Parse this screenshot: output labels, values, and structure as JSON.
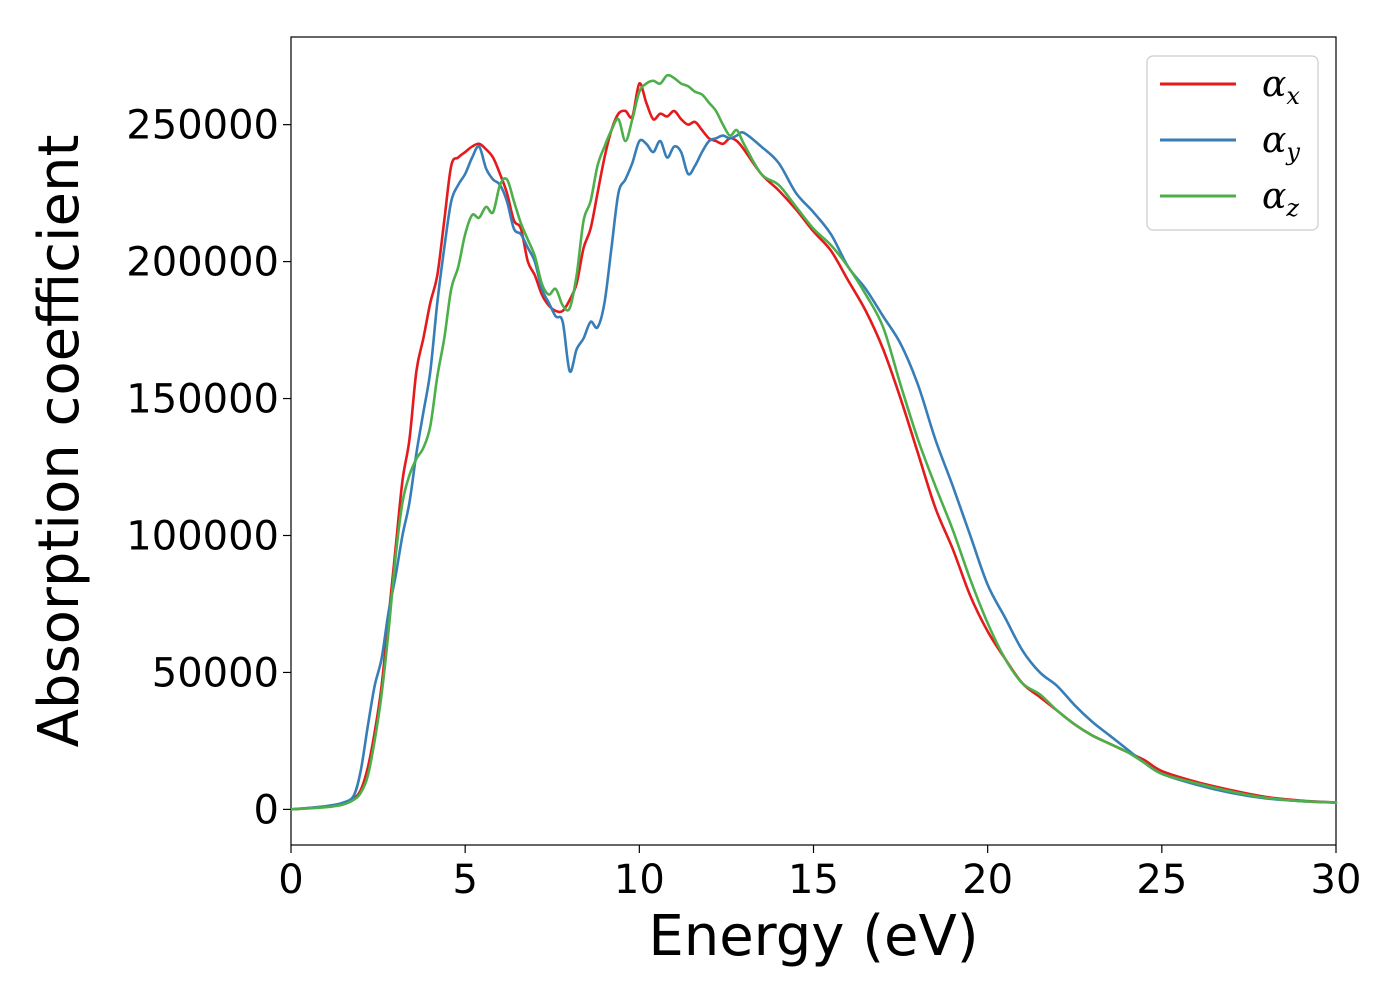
{
  "chart_data": {
    "type": "line",
    "title": "",
    "xlabel": "Energy (eV)",
    "ylabel": "Absorption coefficient",
    "xlim": [
      0,
      30
    ],
    "ylim": [
      -13000,
      282000
    ],
    "xticks": [
      0,
      5,
      10,
      15,
      20,
      25,
      30
    ],
    "yticks": [
      0,
      50000,
      100000,
      150000,
      200000,
      250000
    ],
    "grid": false,
    "legend_position": "top-right",
    "series": [
      {
        "name": "αx",
        "legend_symbol": "α",
        "legend_subscript": "x",
        "color": "#e41a1c",
        "x": [
          0,
          1,
          1.5,
          1.8,
          2,
          2.2,
          2.4,
          2.6,
          2.8,
          3,
          3.2,
          3.4,
          3.6,
          3.8,
          4,
          4.2,
          4.4,
          4.6,
          4.8,
          5,
          5.2,
          5.4,
          5.6,
          5.8,
          6,
          6.2,
          6.4,
          6.6,
          6.8,
          7,
          7.2,
          7.4,
          7.6,
          7.8,
          8,
          8.2,
          8.4,
          8.6,
          8.8,
          9,
          9.2,
          9.4,
          9.6,
          9.8,
          10,
          10.2,
          10.4,
          10.6,
          10.8,
          11,
          11.2,
          11.4,
          11.6,
          11.8,
          12,
          12.2,
          12.4,
          12.6,
          12.8,
          13,
          13.5,
          14,
          14.5,
          15,
          15.5,
          16,
          16.5,
          17,
          17.5,
          18,
          18.5,
          19,
          19.5,
          20,
          20.5,
          21,
          21.5,
          22,
          22.5,
          23,
          23.5,
          24,
          24.5,
          25,
          26,
          27,
          28,
          29,
          30
        ],
        "values": [
          0,
          1000,
          2000,
          4000,
          7000,
          15000,
          28000,
          45000,
          70000,
          95000,
          120000,
          135000,
          160000,
          172000,
          185000,
          195000,
          215000,
          235000,
          238000,
          240000,
          242000,
          243000,
          241000,
          238000,
          232000,
          225000,
          215000,
          212000,
          200000,
          195000,
          188000,
          184000,
          182000,
          182000,
          186000,
          192000,
          205000,
          212000,
          225000,
          238000,
          248000,
          254000,
          255000,
          253000,
          265000,
          258000,
          252000,
          254000,
          253000,
          255000,
          252000,
          250000,
          251000,
          248000,
          245000,
          244000,
          243000,
          245000,
          244000,
          241000,
          232000,
          226000,
          219000,
          211000,
          204000,
          193000,
          182000,
          168000,
          150000,
          130000,
          110000,
          95000,
          78000,
          65000,
          55000,
          46000,
          41000,
          36000,
          31000,
          27000,
          24000,
          21000,
          18000,
          14000,
          10000,
          7000,
          4500,
          3200,
          2500
        ]
      },
      {
        "name": "αy",
        "legend_symbol": "α",
        "legend_subscript": "y",
        "color": "#377eb8",
        "x": [
          0,
          1,
          1.5,
          1.8,
          2,
          2.2,
          2.4,
          2.6,
          2.8,
          3,
          3.2,
          3.4,
          3.6,
          3.8,
          4,
          4.2,
          4.4,
          4.6,
          4.8,
          5,
          5.2,
          5.4,
          5.6,
          5.8,
          6,
          6.2,
          6.4,
          6.6,
          6.8,
          7,
          7.2,
          7.4,
          7.6,
          7.8,
          8,
          8.2,
          8.4,
          8.6,
          8.8,
          9,
          9.2,
          9.4,
          9.6,
          9.8,
          10,
          10.2,
          10.4,
          10.6,
          10.8,
          11,
          11.2,
          11.4,
          11.6,
          11.8,
          12,
          12.2,
          12.4,
          12.6,
          12.8,
          13,
          13.5,
          14,
          14.5,
          15,
          15.5,
          16,
          16.5,
          17,
          17.5,
          18,
          18.5,
          19,
          19.5,
          20,
          20.5,
          21,
          21.5,
          22,
          22.5,
          23,
          23.5,
          24,
          24.5,
          25,
          26,
          27,
          28,
          29,
          30
        ],
        "values": [
          0,
          1200,
          2500,
          5000,
          14000,
          30000,
          45000,
          55000,
          72000,
          85000,
          100000,
          112000,
          130000,
          145000,
          160000,
          185000,
          205000,
          222000,
          228000,
          232000,
          238000,
          242000,
          234000,
          230000,
          228000,
          222000,
          212000,
          210000,
          205000,
          200000,
          190000,
          185000,
          180000,
          178000,
          160000,
          168000,
          172000,
          178000,
          176000,
          185000,
          205000,
          225000,
          230000,
          236000,
          244000,
          243000,
          240000,
          244000,
          238000,
          242000,
          240000,
          232000,
          235000,
          240000,
          244000,
          245000,
          246000,
          245000,
          246000,
          247000,
          242000,
          236000,
          225000,
          218000,
          210000,
          198000,
          190000,
          180000,
          170000,
          155000,
          135000,
          118000,
          100000,
          82000,
          70000,
          58000,
          50000,
          45000,
          38000,
          32000,
          27000,
          22000,
          17000,
          13000,
          9000,
          6000,
          4000,
          3000,
          2500
        ]
      },
      {
        "name": "αz",
        "legend_symbol": "α",
        "legend_subscript": "z",
        "color": "#4daf4a",
        "x": [
          0,
          1,
          1.5,
          1.8,
          2,
          2.2,
          2.4,
          2.6,
          2.8,
          3,
          3.2,
          3.4,
          3.6,
          3.8,
          4,
          4.2,
          4.4,
          4.6,
          4.8,
          5,
          5.2,
          5.4,
          5.6,
          5.8,
          6,
          6.2,
          6.4,
          6.6,
          6.8,
          7,
          7.2,
          7.4,
          7.6,
          7.8,
          8,
          8.2,
          8.4,
          8.6,
          8.8,
          9,
          9.2,
          9.4,
          9.6,
          9.8,
          10,
          10.2,
          10.4,
          10.6,
          10.8,
          11,
          11.2,
          11.4,
          11.6,
          11.8,
          12,
          12.2,
          12.4,
          12.6,
          12.8,
          13,
          13.5,
          14,
          14.5,
          15,
          15.5,
          16,
          16.5,
          17,
          17.5,
          18,
          18.5,
          19,
          19.5,
          20,
          20.5,
          21,
          21.5,
          22,
          22.5,
          23,
          23.5,
          24,
          24.5,
          25,
          26,
          27,
          28,
          29,
          30
        ],
        "values": [
          0,
          800,
          1800,
          3500,
          6000,
          12000,
          25000,
          42000,
          65000,
          92000,
          112000,
          122000,
          128000,
          132000,
          140000,
          158000,
          172000,
          190000,
          198000,
          210000,
          217000,
          216000,
          220000,
          218000,
          228000,
          230000,
          222000,
          214000,
          208000,
          202000,
          192000,
          188000,
          190000,
          184000,
          183000,
          195000,
          215000,
          222000,
          235000,
          242000,
          248000,
          252000,
          244000,
          252000,
          262000,
          265000,
          266000,
          265000,
          268000,
          267000,
          265000,
          264000,
          262000,
          261000,
          258000,
          255000,
          250000,
          246000,
          248000,
          243000,
          232000,
          228000,
          220000,
          212000,
          206000,
          198000,
          188000,
          176000,
          155000,
          135000,
          118000,
          102000,
          84000,
          68000,
          55000,
          46000,
          42000,
          36000,
          31000,
          27000,
          24000,
          21000,
          17000,
          13000,
          9500,
          6500,
          4200,
          3000,
          2500
        ]
      }
    ]
  }
}
